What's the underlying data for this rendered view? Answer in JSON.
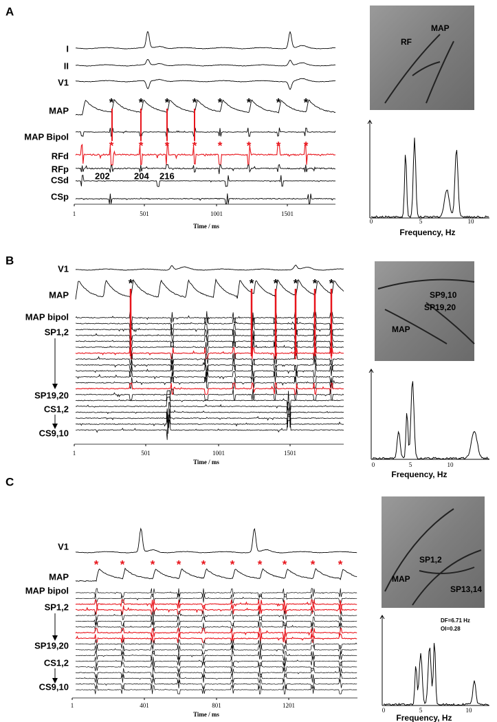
{
  "panels": [
    {
      "label": "A",
      "traces": [
        "I",
        "II",
        "V1",
        "MAP",
        "MAP Bipol",
        "RFd",
        "RFp",
        "CSd",
        "CSp"
      ],
      "annotations": [
        "202",
        "204",
        "216"
      ],
      "marker": "*",
      "time_ticks": [
        "1",
        "501",
        "1001",
        "1501"
      ],
      "time_title": "Time / ms",
      "image_labels": [
        "RF",
        "MAP"
      ],
      "freq_ticks": [
        "0",
        "5",
        "10"
      ],
      "freq_title": "Frequency, Hz"
    },
    {
      "label": "B",
      "traces": [
        "V1",
        "MAP",
        "MAP bipol",
        "SP1,2",
        "SP19,20",
        "CS1,2",
        "CS9,10"
      ],
      "marker": "*",
      "time_ticks": [
        "1",
        "501",
        "1001",
        "1501"
      ],
      "time_title": "Time / ms",
      "image_labels": [
        "SP9,10",
        "SP19,20",
        "MAP"
      ],
      "freq_ticks": [
        "0",
        "5",
        "10"
      ],
      "freq_title": "Frequency, Hz"
    },
    {
      "label": "C",
      "traces": [
        "V1",
        "MAP",
        "MAP bipol",
        "SP1,2",
        "SP19,20",
        "CS1,2",
        "CS9,10"
      ],
      "marker": "*",
      "time_ticks": [
        "1",
        "401",
        "801",
        "1201"
      ],
      "time_title": "Time / ms",
      "image_labels": [
        "SP1,2",
        "MAP",
        "SP13,14"
      ],
      "spectrum_notes": [
        "DF=6.71 Hz",
        "OI=0.28"
      ],
      "freq_ticks": [
        "0",
        "5",
        "10"
      ],
      "freq_title": "Frequency, Hz"
    }
  ]
}
